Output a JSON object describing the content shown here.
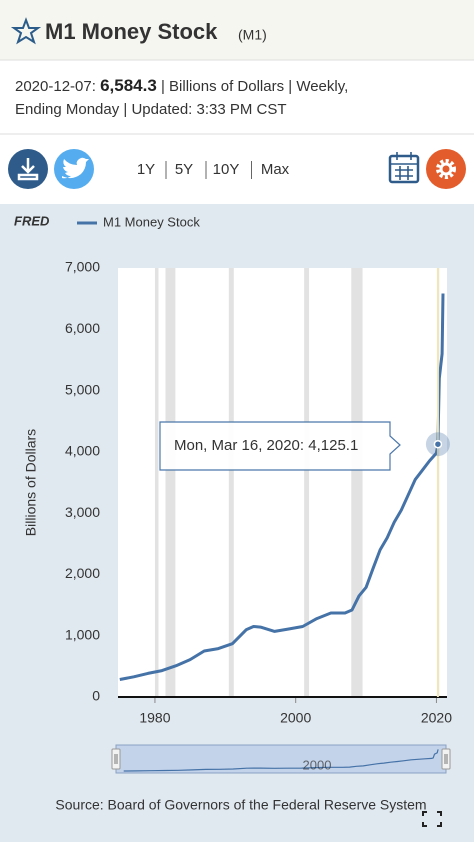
{
  "header": {
    "title": "M1 Money Stock",
    "series_id": "(M1)"
  },
  "info": {
    "date": "2020-12-07:",
    "value": "6,584.3",
    "line1_rest": "| Billions of Dollars | Weekly,",
    "line2": "Ending Monday | Updated: 3:33 PM CST"
  },
  "ranges": [
    "1Y",
    "5Y",
    "10Y",
    "Max"
  ],
  "logo": "FRED",
  "source": "Source: Board of Governors of the Federal Reserve System",
  "chart_data": {
    "type": "line",
    "y_label": "Billions of Dollars",
    "x": [
      1975,
      1977,
      1979,
      1981,
      1983,
      1985,
      1987,
      1989,
      1991,
      1993,
      1994,
      1995,
      1997,
      1999,
      2001,
      2003,
      2005,
      2007,
      2008,
      2009,
      2010,
      2011,
      2012,
      2013,
      2014,
      2015,
      2016,
      2017,
      2018,
      2019,
      2020,
      2020.21,
      2020.4,
      2020.6,
      2020.8,
      2020.93
    ],
    "series": [
      {
        "name": "M1 Money Stock",
        "color": "#4572a7",
        "values": [
          285,
          330,
          385,
          430,
          510,
          610,
          750,
          790,
          870,
          1100,
          1150,
          1140,
          1070,
          1110,
          1150,
          1280,
          1370,
          1370,
          1420,
          1650,
          1790,
          2100,
          2400,
          2600,
          2850,
          3050,
          3300,
          3550,
          3700,
          3850,
          3980,
          4125.1,
          5200,
          5400,
          5600,
          6584.3
        ]
      }
    ],
    "xlim": [
      1974.75,
      2021.5
    ],
    "xticks": [
      1980,
      2000,
      2020
    ],
    "ylim": [
      0,
      7000
    ],
    "yticks": [
      0,
      {
        "value": 1000,
        "label": "1,000"
      },
      {
        "value": 2000,
        "label": "2,000"
      },
      {
        "value": 3000,
        "label": "3,000"
      },
      {
        "value": 4000,
        "label": "4,000"
      },
      {
        "value": 5000,
        "label": "5,000"
      },
      {
        "value": 6000,
        "label": "6,000"
      },
      {
        "value": 7000,
        "label": "7,000"
      }
    ],
    "recessions": [
      [
        1980.0,
        1980.5
      ],
      [
        1981.5,
        1982.9
      ],
      [
        1990.5,
        1991.2
      ],
      [
        2001.2,
        2001.9
      ],
      [
        2007.9,
        2009.5
      ],
      [
        2020.1,
        2020.4
      ]
    ],
    "recession_color": "#e2e2e2",
    "grid": false,
    "tooltip": {
      "label": "Mon, Mar 16, 2020:",
      "value_label": "4,125.1",
      "x": 2020.21,
      "value": 4125.1
    }
  }
}
